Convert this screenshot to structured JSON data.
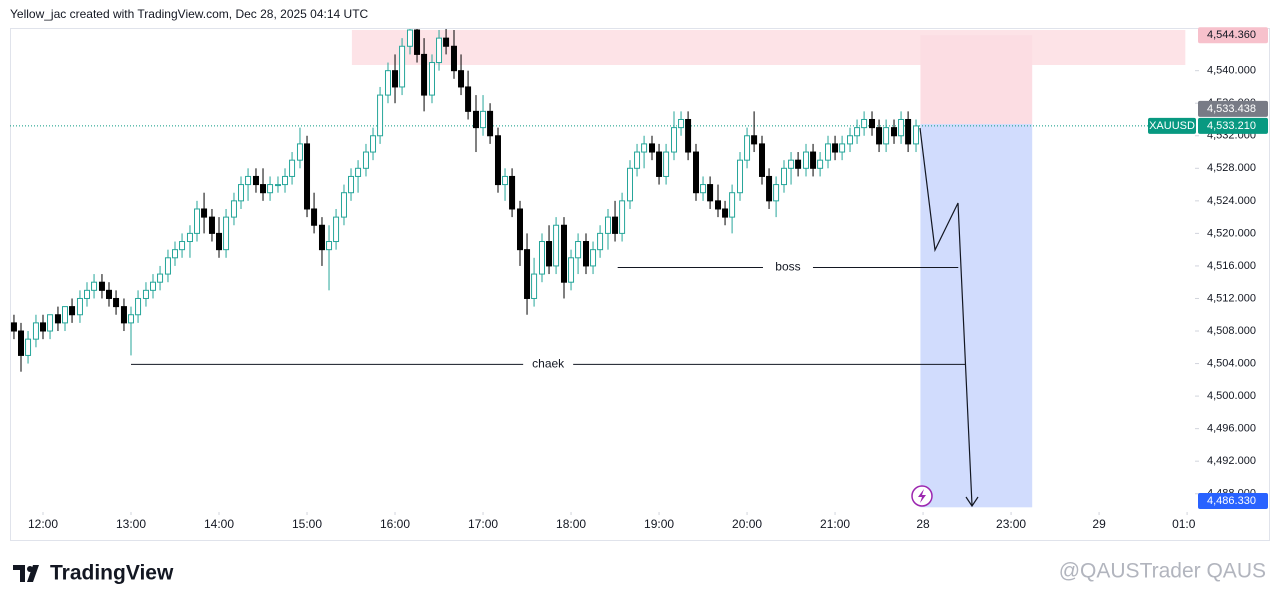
{
  "header": {
    "title": "Yellow_jac created with TradingView.com, Dec 28, 2025 04:14 UTC"
  },
  "footer": {
    "logo": "TradingView",
    "watermark": "@QAUSTrader QAUS"
  },
  "chart_data": {
    "type": "candlestick",
    "symbol": "XAUUSD",
    "up_color": "#26a69a",
    "down_color": "#000000",
    "grid": false,
    "xlim": [
      11.625,
      25.09
    ],
    "ylim": [
      4486,
      4545
    ],
    "xticks": [
      {
        "value": 12,
        "label": "12:00"
      },
      {
        "value": 13,
        "label": "13:00"
      },
      {
        "value": 14,
        "label": "14:00"
      },
      {
        "value": 15,
        "label": "15:00"
      },
      {
        "value": 16,
        "label": "16:00"
      },
      {
        "value": 17,
        "label": "17:00"
      },
      {
        "value": 18,
        "label": "18:00"
      },
      {
        "value": 19,
        "label": "19:00"
      },
      {
        "value": 20,
        "label": "20:00"
      },
      {
        "value": 21,
        "label": "21:00"
      },
      {
        "value": 22,
        "label": "28"
      },
      {
        "value": 23,
        "label": "23:00"
      },
      {
        "value": 24,
        "label": "29"
      },
      {
        "value": 25,
        "label": "01:00"
      }
    ],
    "yticks": [
      {
        "value": 4488,
        "label": "4,488.000"
      },
      {
        "value": 4492,
        "label": "4,492.000"
      },
      {
        "value": 4496,
        "label": "4,496.000"
      },
      {
        "value": 4500,
        "label": "4,500.000"
      },
      {
        "value": 4504,
        "label": "4,504.000"
      },
      {
        "value": 4508,
        "label": "4,508.000"
      },
      {
        "value": 4512,
        "label": "4,512.000"
      },
      {
        "value": 4516,
        "label": "4,516.000"
      },
      {
        "value": 4520,
        "label": "4,520.000"
      },
      {
        "value": 4524,
        "label": "4,524.000"
      },
      {
        "value": 4528,
        "label": "4,528.000"
      },
      {
        "value": 4532,
        "label": "4,532.000"
      },
      {
        "value": 4536,
        "label": "4,536.000"
      },
      {
        "value": 4540,
        "label": "4,540.000"
      }
    ],
    "x": [
      11.67,
      11.75,
      11.83,
      11.92,
      12,
      12.08,
      12.17,
      12.25,
      12.33,
      12.42,
      12.5,
      12.58,
      12.67,
      12.75,
      12.83,
      12.92,
      13,
      13.08,
      13.17,
      13.25,
      13.33,
      13.42,
      13.5,
      13.58,
      13.67,
      13.75,
      13.83,
      13.92,
      14,
      14.08,
      14.17,
      14.25,
      14.33,
      14.42,
      14.5,
      14.58,
      14.67,
      14.75,
      14.83,
      14.92,
      15,
      15.08,
      15.17,
      15.25,
      15.33,
      15.42,
      15.5,
      15.58,
      15.67,
      15.75,
      15.83,
      15.92,
      16,
      16.08,
      16.17,
      16.25,
      16.33,
      16.42,
      16.5,
      16.58,
      16.67,
      16.75,
      16.83,
      16.92,
      17,
      17.08,
      17.17,
      17.25,
      17.33,
      17.42,
      17.5,
      17.58,
      17.67,
      17.75,
      17.83,
      17.92,
      18,
      18.08,
      18.17,
      18.25,
      18.33,
      18.42,
      18.5,
      18.58,
      18.67,
      18.75,
      18.83,
      18.92,
      19,
      19.08,
      19.17,
      19.25,
      19.33,
      19.42,
      19.5,
      19.58,
      19.67,
      19.75,
      19.83,
      19.92,
      20,
      20.08,
      20.17,
      20.25,
      20.33,
      20.42,
      20.5,
      20.58,
      20.67,
      20.75,
      20.83,
      20.92,
      21,
      21.08,
      21.17,
      21.25,
      21.33,
      21.42,
      21.5,
      21.58,
      21.67,
      21.75,
      21.83,
      21.92
    ],
    "ohlc": [
      [
        4509,
        4510,
        4507,
        4508
      ],
      [
        4508,
        4509,
        4503,
        4505
      ],
      [
        4505,
        4508,
        4504,
        4507
      ],
      [
        4507,
        4510,
        4506,
        4509
      ],
      [
        4509,
        4510,
        4507,
        4508
      ],
      [
        4508,
        4510,
        4507,
        4510
      ],
      [
        4510,
        4511,
        4508,
        4509
      ],
      [
        4509,
        4511,
        4508,
        4511
      ],
      [
        4511,
        4512,
        4509,
        4510
      ],
      [
        4510,
        4513,
        4509,
        4512
      ],
      [
        4512,
        4514,
        4511,
        4513
      ],
      [
        4513,
        4515,
        4512,
        4514
      ],
      [
        4514,
        4515,
        4512,
        4513
      ],
      [
        4513,
        4514,
        4511,
        4512
      ],
      [
        4512,
        4513,
        4510,
        4511
      ],
      [
        4511,
        4512,
        4508,
        4509
      ],
      [
        4509,
        4511,
        4505,
        4510
      ],
      [
        4510,
        4513,
        4509,
        4512
      ],
      [
        4512,
        4514,
        4511,
        4513
      ],
      [
        4513,
        4515,
        4512,
        4514
      ],
      [
        4514,
        4516,
        4513,
        4515
      ],
      [
        4515,
        4518,
        4514,
        4517
      ],
      [
        4517,
        4519,
        4516,
        4518
      ],
      [
        4518,
        4520,
        4517,
        4519
      ],
      [
        4519,
        4521,
        4517,
        4520
      ],
      [
        4520,
        4524,
        4519,
        4523
      ],
      [
        4523,
        4525,
        4520,
        4522
      ],
      [
        4522,
        4523,
        4519,
        4520
      ],
      [
        4520,
        4522,
        4517,
        4518
      ],
      [
        4518,
        4523,
        4517,
        4522
      ],
      [
        4522,
        4525,
        4521,
        4524
      ],
      [
        4524,
        4527,
        4523,
        4526
      ],
      [
        4526,
        4528,
        4524,
        4527
      ],
      [
        4527,
        4528,
        4525,
        4526
      ],
      [
        4526,
        4528,
        4524,
        4525
      ],
      [
        4525,
        4527,
        4524,
        4526
      ],
      [
        4526,
        4527,
        4525,
        4526
      ],
      [
        4526,
        4528,
        4525,
        4527
      ],
      [
        4527,
        4530,
        4526,
        4529
      ],
      [
        4529,
        4533,
        4528,
        4531
      ],
      [
        4531,
        4532,
        4522,
        4523
      ],
      [
        4523,
        4525,
        4520,
        4521
      ],
      [
        4521,
        4522,
        4516,
        4518
      ],
      [
        4518,
        4521,
        4513,
        4519
      ],
      [
        4519,
        4523,
        4518,
        4522
      ],
      [
        4522,
        4526,
        4521,
        4525
      ],
      [
        4525,
        4528,
        4524,
        4527
      ],
      [
        4527,
        4529,
        4525,
        4528
      ],
      [
        4528,
        4531,
        4527,
        4530
      ],
      [
        4530,
        4533,
        4529,
        4532
      ],
      [
        4532,
        4538,
        4531,
        4537
      ],
      [
        4537,
        4541,
        4536,
        4540
      ],
      [
        4540,
        4542,
        4536,
        4538
      ],
      [
        4538,
        4544,
        4537,
        4543
      ],
      [
        4543,
        4546,
        4542,
        4545
      ],
      [
        4545,
        4546,
        4541,
        4542
      ],
      [
        4542,
        4544,
        4535,
        4537
      ],
      [
        4537,
        4542,
        4536,
        4541
      ],
      [
        4541,
        4545,
        4540,
        4544
      ],
      [
        4544,
        4546,
        4542,
        4543
      ],
      [
        4543,
        4545,
        4539,
        4540
      ],
      [
        4540,
        4542,
        4537,
        4538
      ],
      [
        4538,
        4540,
        4534,
        4535
      ],
      [
        4535,
        4537,
        4530,
        4533
      ],
      [
        4533,
        4537,
        4532,
        4535
      ],
      [
        4535,
        4536,
        4531,
        4532
      ],
      [
        4532,
        4533,
        4525,
        4526
      ],
      [
        4526,
        4528,
        4524,
        4527
      ],
      [
        4527,
        4528,
        4522,
        4523
      ],
      [
        4523,
        4524,
        4516,
        4518
      ],
      [
        4518,
        4520,
        4510,
        4512
      ],
      [
        4512,
        4517,
        4511,
        4515
      ],
      [
        4515,
        4520,
        4514,
        4519
      ],
      [
        4519,
        4521,
        4515,
        4516
      ],
      [
        4516,
        4522,
        4515,
        4521
      ],
      [
        4521,
        4522,
        4512,
        4514
      ],
      [
        4514,
        4518,
        4513,
        4517
      ],
      [
        4517,
        4520,
        4515,
        4519
      ],
      [
        4519,
        4520,
        4515,
        4516
      ],
      [
        4516,
        4519,
        4515,
        4518
      ],
      [
        4518,
        4521,
        4517,
        4520
      ],
      [
        4520,
        4523,
        4518,
        4522
      ],
      [
        4522,
        4524,
        4519,
        4520
      ],
      [
        4520,
        4525,
        4519,
        4524
      ],
      [
        4524,
        4529,
        4523,
        4528
      ],
      [
        4528,
        4531,
        4527,
        4530
      ],
      [
        4530,
        4532,
        4528,
        4531
      ],
      [
        4531,
        4532,
        4529,
        4530
      ],
      [
        4530,
        4531,
        4526,
        4527
      ],
      [
        4527,
        4531,
        4526,
        4530
      ],
      [
        4530,
        4535,
        4529,
        4533
      ],
      [
        4533,
        4535,
        4532,
        4534
      ],
      [
        4534,
        4535,
        4529,
        4530
      ],
      [
        4530,
        4531,
        4524,
        4525
      ],
      [
        4525,
        4527,
        4524,
        4526
      ],
      [
        4526,
        4527,
        4523,
        4524
      ],
      [
        4524,
        4526,
        4522,
        4523
      ],
      [
        4523,
        4524,
        4521,
        4522
      ],
      [
        4522,
        4526,
        4520,
        4525
      ],
      [
        4525,
        4530,
        4524,
        4529
      ],
      [
        4529,
        4533,
        4528,
        4532
      ],
      [
        4532,
        4535,
        4530,
        4531
      ],
      [
        4531,
        4532,
        4526,
        4527
      ],
      [
        4527,
        4528,
        4523,
        4524
      ],
      [
        4524,
        4527,
        4522,
        4526
      ],
      [
        4526,
        4529,
        4525,
        4528
      ],
      [
        4528,
        4530,
        4526,
        4529
      ],
      [
        4529,
        4530,
        4527,
        4528
      ],
      [
        4528,
        4531,
        4527,
        4530
      ],
      [
        4530,
        4531,
        4527,
        4528
      ],
      [
        4528,
        4530,
        4527,
        4529
      ],
      [
        4529,
        4532,
        4528,
        4531
      ],
      [
        4531,
        4532,
        4529,
        4530
      ],
      [
        4530,
        4532,
        4529,
        4531
      ],
      [
        4531,
        4533,
        4530,
        4532
      ],
      [
        4532,
        4534,
        4531,
        4533
      ],
      [
        4533,
        4535,
        4532,
        4534
      ],
      [
        4534,
        4535,
        4532,
        4533
      ],
      [
        4533,
        4534,
        4530,
        4531
      ],
      [
        4531,
        4534,
        4530,
        4533
      ],
      [
        4533,
        4534,
        4531,
        4532
      ],
      [
        4532,
        4535,
        4531,
        4534
      ],
      [
        4534,
        4535,
        4530,
        4531
      ],
      [
        4531,
        4534,
        4530,
        4533.21
      ]
    ],
    "last_price": {
      "value": 4533.21,
      "label": "4,533.210",
      "color": "#089981"
    },
    "zones": [
      {
        "from": 15.51,
        "to": 24.98,
        "low": 4540.7,
        "high": 4545,
        "color": "#fde3e7"
      }
    ],
    "position": {
      "start": 21.97,
      "end": 23.24,
      "stop": {
        "value": 4544.36,
        "label": "4,544.360"
      },
      "entry": {
        "value": 4533.438,
        "label": "4,533.438"
      },
      "target": {
        "value": 4486.33,
        "label": "4,486.330"
      },
      "risk_color": "#fcdde3",
      "reward_color": "#d1dcfd",
      "stop_badge": "#f7c1cc",
      "entry_badge": "#787b86",
      "target_badge": "#2962ff"
    },
    "annotations": [
      {
        "text": "boss",
        "level": 4515.8,
        "from": 18.53,
        "to": 22.4
      },
      {
        "text": "chaek",
        "level": 4503.9,
        "from": 13.0,
        "to": 22.48
      }
    ]
  }
}
